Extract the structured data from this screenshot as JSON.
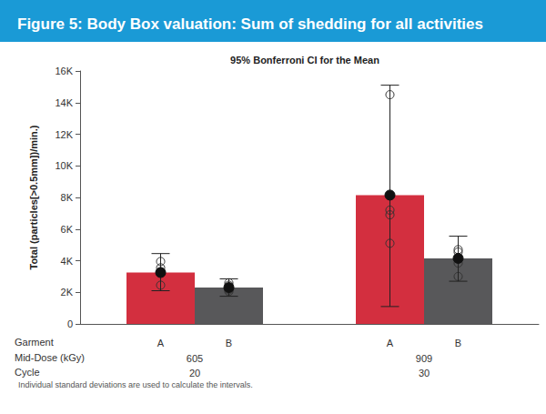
{
  "chart_data": {
    "type": "bar",
    "title": "Figure 5: Body Box valuation: Sum of shedding for all activities",
    "subtitle": "95% Bonferroni CI for the Mean",
    "ylabel": "Total (particles[>0.5mm])/min.)",
    "note": "Individual standard deviations are used to calculate the intervals.",
    "series_label": "Garment",
    "category_label": "Mid-Dose (kGy)",
    "categories": [
      "605",
      "909"
    ],
    "categories_2": {
      "label": "Cycle",
      "values": [
        "20",
        "30"
      ]
    },
    "series": [
      {
        "name": "A",
        "color": "#d32f3f",
        "values": [
          3250,
          8150
        ],
        "ci_low": [
          2100,
          1100
        ],
        "ci_high": [
          4450,
          15100
        ],
        "points": [
          [
            3950,
            3550,
            3300,
            2450
          ],
          [
            14500,
            7200,
            6900,
            5100
          ]
        ]
      },
      {
        "name": "B",
        "color": "#58585a",
        "values": [
          2300,
          4150
        ],
        "ci_low": [
          1750,
          2700
        ],
        "ci_high": [
          2850,
          5550
        ],
        "points": [
          [
            2600,
            2450,
            2150,
            2050
          ],
          [
            4700,
            4550,
            3850,
            3000
          ]
        ]
      }
    ],
    "ylim": [
      0,
      16000
    ],
    "yticks": [
      0,
      {
        "value": 2000,
        "label": "2K"
      },
      {
        "value": 4000,
        "label": "4K"
      },
      {
        "value": 6000,
        "label": "6K"
      },
      {
        "value": 8000,
        "label": "8K"
      },
      {
        "value": 10000,
        "label": "10K"
      },
      {
        "value": 12000,
        "label": "12K"
      },
      {
        "value": 14000,
        "label": "14K"
      },
      {
        "value": 16000,
        "label": "16K"
      }
    ],
    "grid": false
  }
}
